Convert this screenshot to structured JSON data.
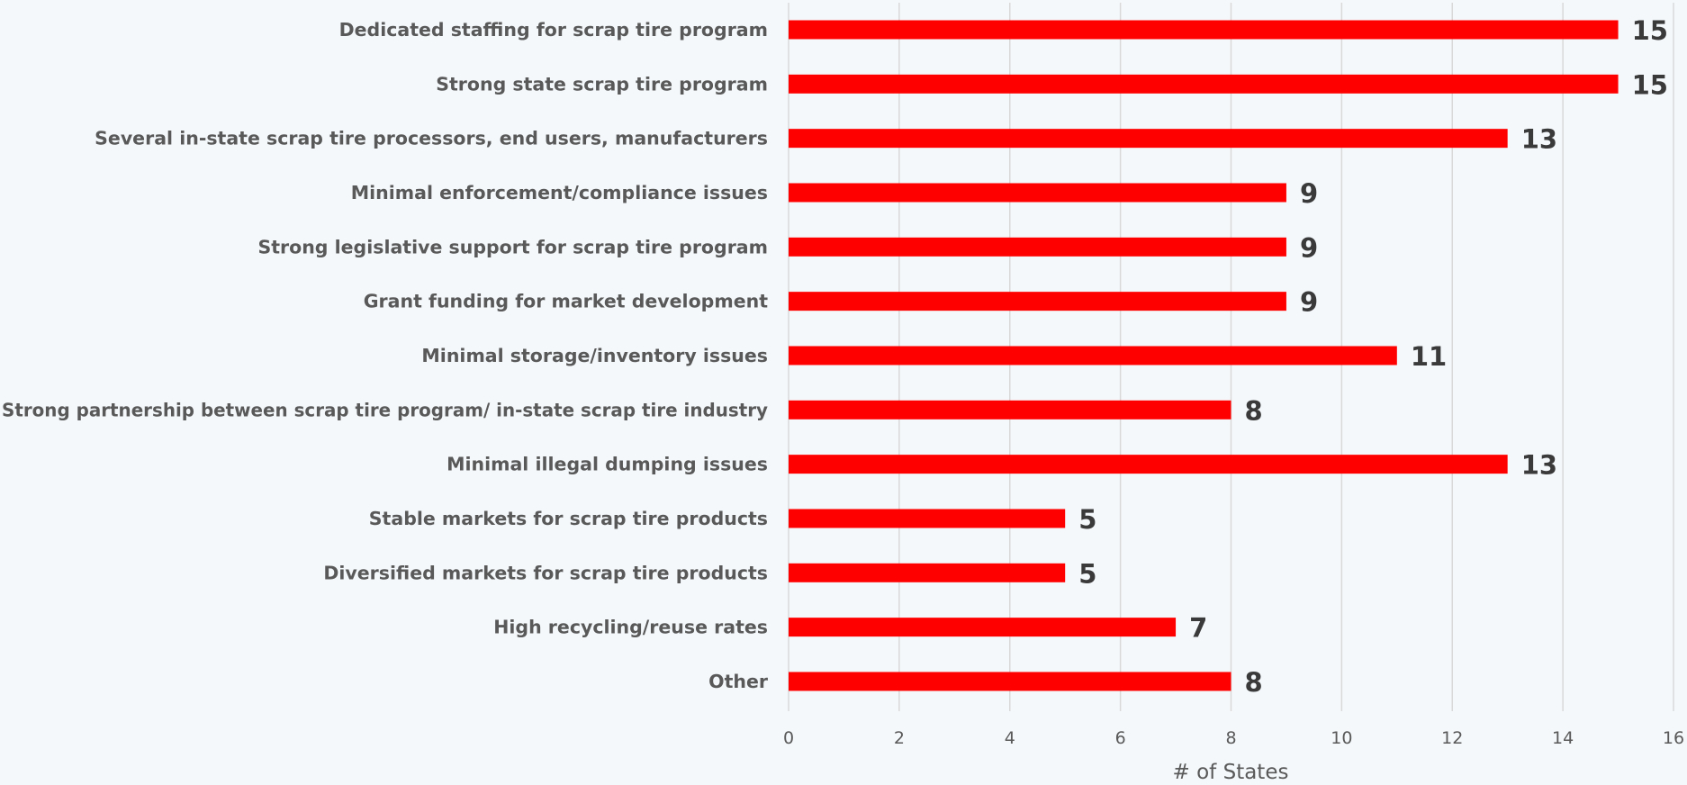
{
  "chart_data": {
    "type": "bar",
    "orientation": "horizontal",
    "categories": [
      "Dedicated staffing for scrap tire program",
      "Strong state scrap tire program",
      "Several in-state scrap tire processors, end users, manufacturers",
      "Minimal enforcement/compliance issues",
      "Strong legislative support for scrap tire program",
      "Grant funding for market development",
      "Minimal storage/inventory issues",
      "Strong partnership between scrap tire program/ in-state scrap tire industry",
      "Minimal illegal dumping issues",
      "Stable markets for scrap tire products",
      "Diversified markets for scrap tire products",
      "High recycling/reuse rates",
      "Other"
    ],
    "values": [
      15,
      15,
      13,
      9,
      9,
      9,
      11,
      8,
      13,
      5,
      5,
      7,
      8
    ],
    "data_labels": [
      "15",
      "15",
      "13",
      "9",
      "9",
      "9",
      "11",
      "8",
      "13",
      "5",
      "5",
      "7",
      "8"
    ],
    "xlabel": "# of States",
    "ylabel": "",
    "xlim": [
      0,
      16
    ],
    "xticks": [
      "0",
      "2",
      "4",
      "6",
      "8",
      "10",
      "12",
      "14",
      "16"
    ],
    "grid": "vertical",
    "colors": {
      "bar": "#ff0000",
      "background": "#f4f8fb",
      "grid": "#d9d9d9"
    }
  }
}
